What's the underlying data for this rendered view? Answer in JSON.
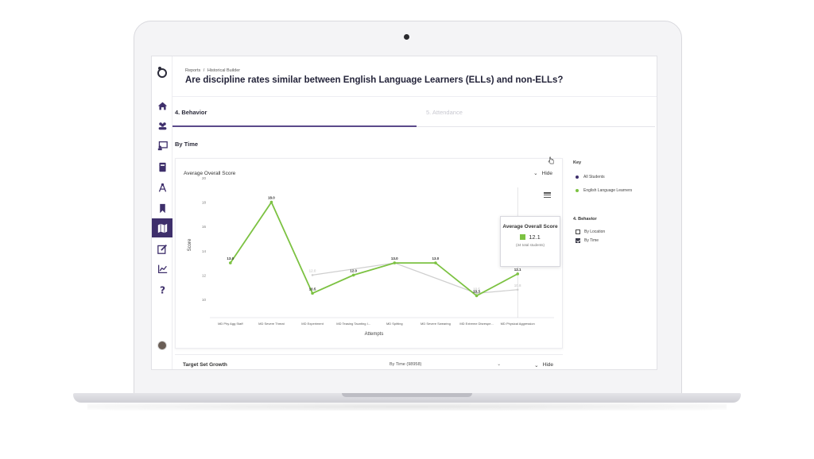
{
  "breadcrumb": [
    "Reports",
    "/",
    "Historical Builder"
  ],
  "page_title": "Are discipline rates similar between English Language Learners (ELLs) and non-ELLs?",
  "tabs": [
    {
      "label": "4. Behavior",
      "active": true
    },
    {
      "label": "5. Attendance",
      "active": false
    }
  ],
  "section_title": "By Time",
  "chart_card": {
    "title": "Average Overall Score",
    "hide_label": "Hide"
  },
  "tooltip": {
    "title": "Average Overall Score",
    "value": "12.1",
    "subtext": "(34 total students)"
  },
  "second_card": {
    "title": "Target Set Growth",
    "select_value": "By Time (98958)",
    "hide_label": "Hide"
  },
  "key": {
    "title": "Key",
    "legend": [
      {
        "label": "All Students",
        "color": "#3e2f6b"
      },
      {
        "label": "English Language Learners",
        "color": "#7cc242"
      }
    ],
    "filter_title": "4. Behavior",
    "filters": [
      {
        "label": "By Location",
        "checked": false
      },
      {
        "label": "By Time",
        "checked": true
      }
    ]
  },
  "colors": {
    "accent": "#3e2f6b",
    "ell_series": "#7cc242",
    "all_series": "#cfcfcf"
  },
  "chart_data": {
    "type": "line",
    "title": "Average Overall Score",
    "xlabel": "Attempts",
    "ylabel": "Score",
    "ylim": [
      10,
      20
    ],
    "yticks": [
      10,
      12,
      14,
      16,
      18,
      20
    ],
    "categories": [
      "MD Phy Agg Staff",
      "MD Severe Threat",
      "MD Experiment",
      "MD Teasing Taunting I...",
      "MD Spitting",
      "MD Severe Swearing",
      "MD Extreme Disrespe...",
      "MD Physical Aggression"
    ],
    "series": [
      {
        "name": "All Students",
        "values": [
          null,
          null,
          12.0,
          null,
          13.0,
          null,
          10.5,
          10.8
        ]
      },
      {
        "name": "English Language Learners",
        "values": [
          13.0,
          18.0,
          10.5,
          12.0,
          13.0,
          13.0,
          10.3,
          12.1
        ]
      }
    ],
    "grid": false,
    "legend": "right"
  }
}
